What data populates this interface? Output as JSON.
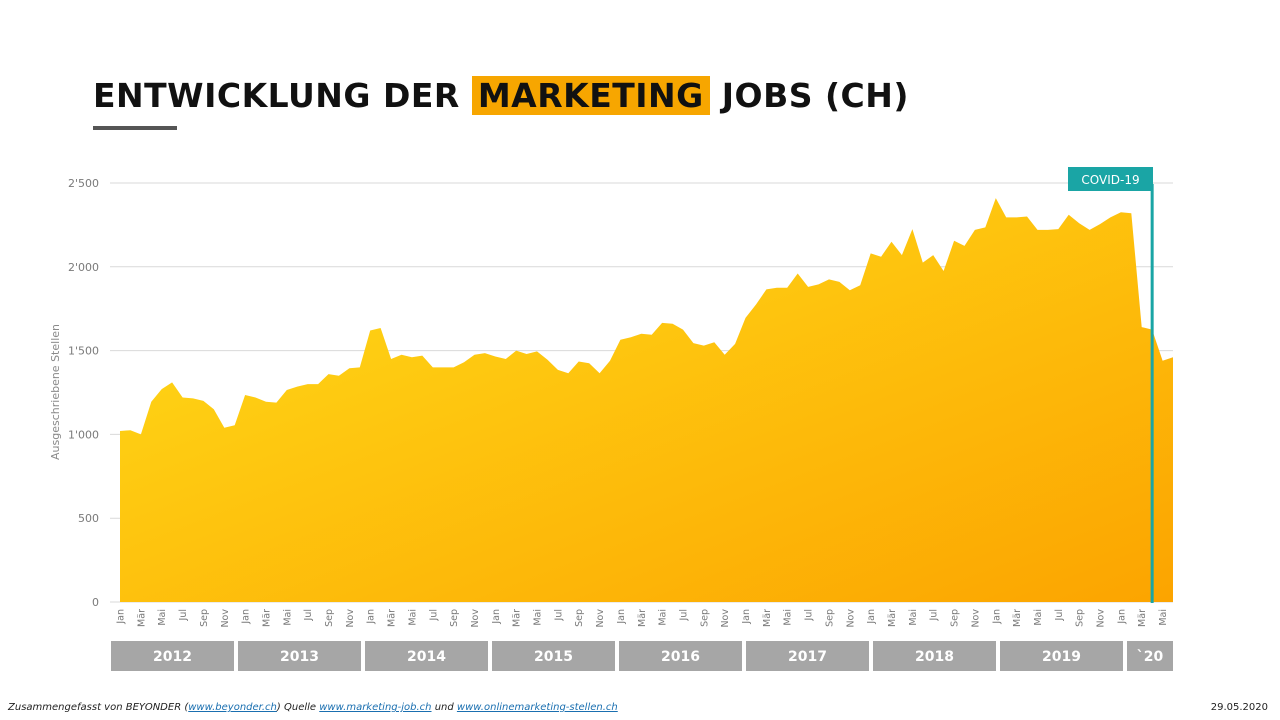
{
  "title": {
    "before": "ENTWICKLUNG DER",
    "highlight": "MARKETING",
    "after": "JOBS (CH)"
  },
  "colors": {
    "accent": "#f7a600",
    "area_top": "#ffde1a",
    "area_bottom": "#fca400",
    "covid_line": "#1aa5a5",
    "year_box": "#a6a6a6",
    "grid": "#d9d9d9"
  },
  "covid_label": "COVID-19",
  "footer": {
    "prefix": "Zusammengefasst von BEYONDER (",
    "link1": "www.beyonder.ch",
    "mid": ")  Quelle ",
    "link2": "www.marketing-job.ch",
    "und": " und ",
    "link3": "www.onlinemarketing-stellen.ch",
    "date": "29.05.2020"
  },
  "chart_data": {
    "type": "area",
    "ylabel": "Ausgeschriebene  Stellen",
    "ylim": [
      0,
      2500
    ],
    "yticks": [
      0,
      500,
      1000,
      1500,
      2000,
      2500
    ],
    "ytick_labels": [
      "0",
      "500",
      "1'000",
      "1'500",
      "2'000",
      "2'500"
    ],
    "month_labels": [
      "Jan",
      "Mär",
      "Mai",
      "Jul",
      "Sep",
      "Nov"
    ],
    "years": [
      "2012",
      "2013",
      "2014",
      "2015",
      "2016",
      "2017",
      "2018",
      "2019",
      "`20"
    ],
    "values": [
      1020,
      1025,
      1000,
      1195,
      1270,
      1310,
      1220,
      1215,
      1200,
      1150,
      1040,
      1055,
      1235,
      1220,
      1195,
      1190,
      1265,
      1285,
      1300,
      1300,
      1360,
      1350,
      1395,
      1400,
      1620,
      1635,
      1450,
      1475,
      1460,
      1470,
      1400,
      1400,
      1400,
      1430,
      1475,
      1485,
      1465,
      1450,
      1500,
      1480,
      1495,
      1445,
      1385,
      1365,
      1435,
      1425,
      1365,
      1440,
      1565,
      1580,
      1600,
      1595,
      1665,
      1660,
      1625,
      1545,
      1530,
      1550,
      1475,
      1540,
      1695,
      1775,
      1865,
      1875,
      1875,
      1960,
      1880,
      1895,
      1925,
      1910,
      1860,
      1890,
      2080,
      2060,
      2150,
      2070,
      2225,
      2025,
      2070,
      1975,
      2155,
      2125,
      2220,
      2235,
      2410,
      2295,
      2295,
      2300,
      2220,
      2220,
      2225,
      2310,
      2260,
      2220,
      2255,
      2295,
      2325,
      2320,
      1640,
      1625,
      1440,
      1460
    ],
    "covid_index": 99,
    "grid": true
  }
}
